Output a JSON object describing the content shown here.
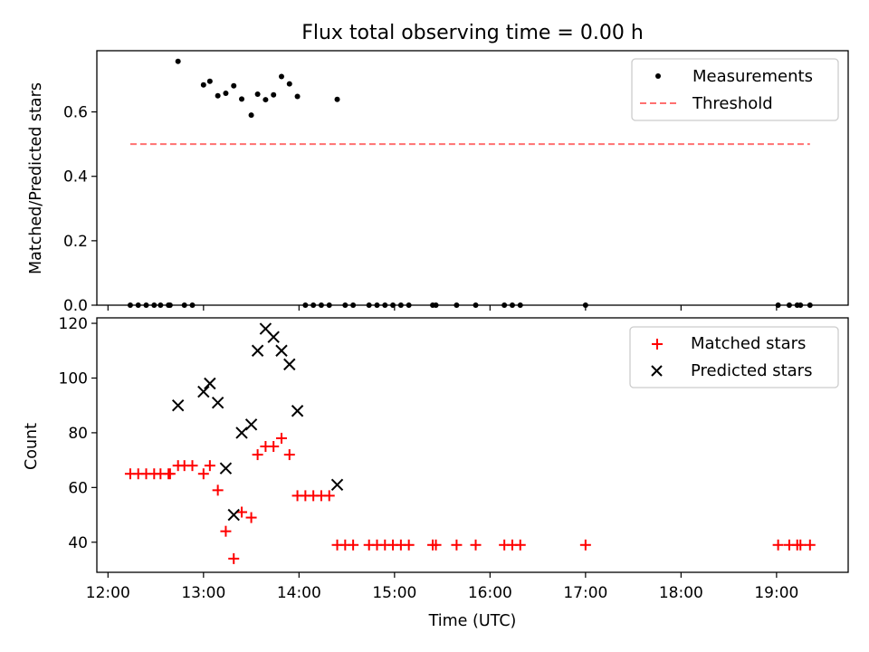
{
  "chart_data": [
    {
      "type": "scatter",
      "title": "Flux total observing time = 0.00 h",
      "xlabel": "",
      "ylabel": "Matched/Predicted stars",
      "ylim": [
        0,
        0.79
      ],
      "xlim": [
        "11:53",
        "19:45"
      ],
      "yticks": [
        0.0,
        0.2,
        0.4,
        0.6
      ],
      "ytick_labels": [
        "0.0",
        "0.2",
        "0.4",
        "0.6"
      ],
      "legend_placement": "top-right",
      "series": [
        {
          "name": "Measurements",
          "marker": "dot",
          "color": "#000000",
          "points": [
            [
              "12:14",
              0.0
            ],
            [
              "12:19",
              0.0
            ],
            [
              "12:24",
              0.0
            ],
            [
              "12:29",
              0.0
            ],
            [
              "12:33",
              0.0
            ],
            [
              "12:38",
              0.0
            ],
            [
              "12:39",
              0.0
            ],
            [
              "12:44",
              0.757
            ],
            [
              "12:48",
              0.0
            ],
            [
              "12:53",
              0.0
            ],
            [
              "13:00",
              0.684
            ],
            [
              "13:04",
              0.695
            ],
            [
              "13:09",
              0.65
            ],
            [
              "13:14",
              0.658
            ],
            [
              "13:19",
              0.681
            ],
            [
              "13:24",
              0.64
            ],
            [
              "13:30",
              0.59
            ],
            [
              "13:34",
              0.655
            ],
            [
              "13:39",
              0.638
            ],
            [
              "13:44",
              0.653
            ],
            [
              "13:49",
              0.71
            ],
            [
              "13:54",
              0.687
            ],
            [
              "13:59",
              0.648
            ],
            [
              "14:04",
              0.0
            ],
            [
              "14:09",
              0.0
            ],
            [
              "14:14",
              0.0
            ],
            [
              "14:19",
              0.0
            ],
            [
              "14:24",
              0.639
            ],
            [
              "14:29",
              0.0
            ],
            [
              "14:34",
              0.0
            ],
            [
              "14:44",
              0.0
            ],
            [
              "14:49",
              0.0
            ],
            [
              "14:54",
              0.0
            ],
            [
              "14:59",
              0.0
            ],
            [
              "15:04",
              0.0
            ],
            [
              "15:09",
              0.0
            ],
            [
              "15:24",
              0.0
            ],
            [
              "15:26",
              0.0
            ],
            [
              "15:39",
              0.0
            ],
            [
              "15:51",
              0.0
            ],
            [
              "16:09",
              0.0
            ],
            [
              "16:14",
              0.0
            ],
            [
              "16:19",
              0.0
            ],
            [
              "17:00",
              0.0
            ],
            [
              "19:01",
              0.0
            ],
            [
              "19:08",
              0.0
            ],
            [
              "19:13",
              0.0
            ],
            [
              "19:15",
              0.0
            ],
            [
              "19:21",
              0.0
            ]
          ]
        },
        {
          "name": "Threshold",
          "type": "line",
          "style": "dashed",
          "color": "#ff7070",
          "points": [
            [
              "12:14",
              0.5
            ],
            [
              "19:21",
              0.5
            ]
          ]
        }
      ]
    },
    {
      "type": "scatter",
      "title": "",
      "xlabel": "Time (UTC)",
      "ylabel": "Count",
      "ylim": [
        29,
        122
      ],
      "xlim": [
        "11:53",
        "19:45"
      ],
      "yticks": [
        40,
        60,
        80,
        100,
        120
      ],
      "ytick_labels": [
        "40",
        "60",
        "80",
        "100",
        "120"
      ],
      "xticks": [
        "12:00",
        "13:00",
        "14:00",
        "15:00",
        "16:00",
        "17:00",
        "18:00",
        "19:00"
      ],
      "xtick_labels": [
        "12:00",
        "13:00",
        "14:00",
        "15:00",
        "16:00",
        "17:00",
        "18:00",
        "19:00"
      ],
      "legend_placement": "top-right",
      "series": [
        {
          "name": "Matched stars",
          "marker": "plus",
          "color": "#ff0000",
          "points": [
            [
              "12:14",
              65
            ],
            [
              "12:19",
              65
            ],
            [
              "12:24",
              65
            ],
            [
              "12:29",
              65
            ],
            [
              "12:33",
              65
            ],
            [
              "12:38",
              65
            ],
            [
              "12:39",
              65
            ],
            [
              "12:44",
              68
            ],
            [
              "12:48",
              68
            ],
            [
              "12:53",
              68
            ],
            [
              "13:00",
              65
            ],
            [
              "13:04",
              68
            ],
            [
              "13:09",
              59
            ],
            [
              "13:14",
              44
            ],
            [
              "13:19",
              34
            ],
            [
              "13:24",
              51
            ],
            [
              "13:30",
              49
            ],
            [
              "13:34",
              72
            ],
            [
              "13:39",
              75
            ],
            [
              "13:44",
              75
            ],
            [
              "13:49",
              78
            ],
            [
              "13:54",
              72
            ],
            [
              "13:59",
              57
            ],
            [
              "14:04",
              57
            ],
            [
              "14:09",
              57
            ],
            [
              "14:14",
              57
            ],
            [
              "14:19",
              57
            ],
            [
              "14:24",
              39
            ],
            [
              "14:29",
              39
            ],
            [
              "14:34",
              39
            ],
            [
              "14:44",
              39
            ],
            [
              "14:49",
              39
            ],
            [
              "14:54",
              39
            ],
            [
              "14:59",
              39
            ],
            [
              "15:04",
              39
            ],
            [
              "15:09",
              39
            ],
            [
              "15:24",
              39
            ],
            [
              "15:26",
              39
            ],
            [
              "15:39",
              39
            ],
            [
              "15:51",
              39
            ],
            [
              "16:09",
              39
            ],
            [
              "16:14",
              39
            ],
            [
              "16:19",
              39
            ],
            [
              "17:00",
              39
            ],
            [
              "19:01",
              39
            ],
            [
              "19:08",
              39
            ],
            [
              "19:13",
              39
            ],
            [
              "19:15",
              39
            ],
            [
              "19:21",
              39
            ]
          ]
        },
        {
          "name": "Predicted stars",
          "marker": "x",
          "color": "#000000",
          "points": [
            [
              "12:44",
              90
            ],
            [
              "13:00",
              95
            ],
            [
              "13:04",
              98
            ],
            [
              "13:09",
              91
            ],
            [
              "13:14",
              67
            ],
            [
              "13:19",
              50
            ],
            [
              "13:24",
              80
            ],
            [
              "13:30",
              83
            ],
            [
              "13:34",
              110
            ],
            [
              "13:39",
              118
            ],
            [
              "13:44",
              115
            ],
            [
              "13:49",
              110
            ],
            [
              "13:54",
              105
            ],
            [
              "13:59",
              88
            ],
            [
              "14:24",
              61
            ]
          ]
        }
      ]
    }
  ]
}
